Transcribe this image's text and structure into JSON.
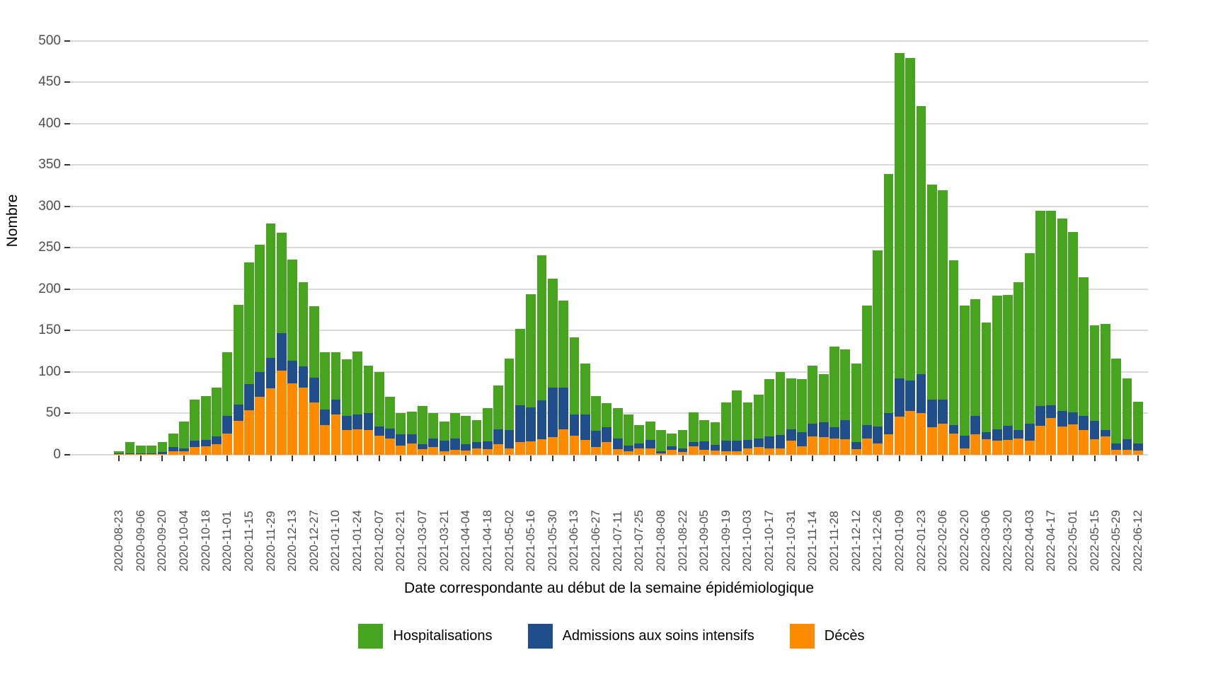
{
  "axes": {
    "y_title": "Nombre",
    "x_title": "Date correspondante au début de la semaine épidémiologique"
  },
  "colors": {
    "hospitalisations": "#47a41f",
    "soins_intensifs": "#1f4e8a",
    "deces": "#ff8c00",
    "gridline": "#d9d9d9",
    "tick": "#333333",
    "tick_label": "#4d4d4d"
  },
  "legend": {
    "items": [
      {
        "label": "Hospitalisations",
        "color": "#47a41f"
      },
      {
        "label": "Admissions aux soins intensifs",
        "color": "#1f4e8a"
      },
      {
        "label": "Décès",
        "color": "#ff8c00"
      }
    ]
  },
  "chart_data": {
    "type": "bar",
    "stacked": true,
    "title": "",
    "xlabel": "Date correspondante au début de la semaine épidémiologique",
    "ylabel": "Nombre",
    "ylim": [
      0,
      500
    ],
    "yticks": [
      0,
      50,
      100,
      150,
      200,
      250,
      300,
      350,
      400,
      450,
      500
    ],
    "grid": "horizontal",
    "legend_position": "bottom",
    "x_tick_every": 2,
    "stack_order_bottom_to_top": [
      "Décès",
      "Admissions aux soins intensifs",
      "Hospitalisations"
    ],
    "categories": [
      "2020-08-23",
      "2020-08-30",
      "2020-09-06",
      "2020-09-13",
      "2020-09-20",
      "2020-09-27",
      "2020-10-04",
      "2020-10-11",
      "2020-10-18",
      "2020-10-25",
      "2020-11-01",
      "2020-11-08",
      "2020-11-15",
      "2020-11-22",
      "2020-11-29",
      "2020-12-06",
      "2020-12-13",
      "2020-12-20",
      "2020-12-27",
      "2021-01-03",
      "2021-01-10",
      "2021-01-17",
      "2021-01-24",
      "2021-01-31",
      "2021-02-07",
      "2021-02-14",
      "2021-02-21",
      "2021-02-28",
      "2021-03-07",
      "2021-03-14",
      "2021-03-21",
      "2021-03-28",
      "2021-04-04",
      "2021-04-11",
      "2021-04-18",
      "2021-04-25",
      "2021-05-02",
      "2021-05-09",
      "2021-05-16",
      "2021-05-23",
      "2021-05-30",
      "2021-06-06",
      "2021-06-13",
      "2021-06-20",
      "2021-06-27",
      "2021-07-04",
      "2021-07-11",
      "2021-07-18",
      "2021-07-25",
      "2021-08-01",
      "2021-08-08",
      "2021-08-15",
      "2021-08-22",
      "2021-08-29",
      "2021-09-05",
      "2021-09-12",
      "2021-09-19",
      "2021-09-26",
      "2021-10-03",
      "2021-10-10",
      "2021-10-17",
      "2021-10-24",
      "2021-10-31",
      "2021-11-07",
      "2021-11-14",
      "2021-11-21",
      "2021-11-28",
      "2021-12-05",
      "2021-12-12",
      "2021-12-19",
      "2021-12-26",
      "2022-01-02",
      "2022-01-09",
      "2022-01-16",
      "2022-01-23",
      "2022-01-30",
      "2022-02-06",
      "2022-02-13",
      "2022-02-20",
      "2022-02-27",
      "2022-03-06",
      "2022-03-13",
      "2022-03-20",
      "2022-03-27",
      "2022-04-03",
      "2022-04-10",
      "2022-04-17",
      "2022-04-24",
      "2022-05-01",
      "2022-05-08",
      "2022-05-15",
      "2022-05-22",
      "2022-05-29",
      "2022-06-05",
      "2022-06-12"
    ],
    "series": [
      {
        "name": "Hospitalisations",
        "color": "#47a41f",
        "values": [
          2,
          13,
          9,
          9,
          12,
          17,
          32,
          50,
          53,
          59,
          77,
          120,
          147,
          154,
          162,
          121,
          122,
          101,
          86,
          69,
          57,
          68,
          76,
          58,
          66,
          38,
          25,
          27,
          46,
          30,
          23,
          30,
          34,
          27,
          40,
          53,
          86,
          92,
          137,
          175,
          132,
          105,
          93,
          61,
          42,
          29,
          36,
          38,
          22,
          22,
          26,
          16,
          22,
          36,
          26,
          27,
          46,
          61,
          45,
          53,
          69,
          76,
          61,
          64,
          70,
          58,
          98,
          85,
          95,
          144,
          213,
          289,
          393,
          389,
          324,
          259,
          252,
          199,
          157,
          141,
          133,
          161,
          158,
          178,
          205,
          236,
          235,
          232,
          218,
          167,
          115,
          128,
          102,
          73,
          50
        ]
      },
      {
        "name": "Admissions aux soins intensifs",
        "color": "#1f4e8a",
        "values": [
          1,
          1,
          1,
          1,
          2,
          5,
          4,
          8,
          8,
          9,
          21,
          20,
          31,
          30,
          37,
          45,
          28,
          26,
          30,
          19,
          18,
          17,
          18,
          20,
          11,
          12,
          14,
          11,
          6,
          11,
          13,
          14,
          8,
          7,
          9,
          18,
          22,
          45,
          41,
          47,
          60,
          50,
          26,
          31,
          20,
          18,
          13,
          7,
          6,
          10,
          2,
          4,
          5,
          5,
          10,
          7,
          13,
          13,
          10,
          11,
          14,
          16,
          14,
          17,
          16,
          18,
          13,
          23,
          8,
          16,
          20,
          25,
          46,
          37,
          47,
          34,
          29,
          10,
          15,
          22,
          8,
          14,
          17,
          10,
          21,
          24,
          16,
          19,
          14,
          17,
          22,
          8,
          8,
          13,
          9
        ]
      },
      {
        "name": "Décès",
        "color": "#ff8c00",
        "values": [
          1,
          1,
          1,
          1,
          1,
          4,
          4,
          9,
          10,
          13,
          26,
          41,
          54,
          70,
          80,
          102,
          86,
          81,
          63,
          36,
          49,
          30,
          31,
          30,
          23,
          20,
          11,
          14,
          7,
          9,
          4,
          6,
          5,
          8,
          7,
          13,
          8,
          15,
          16,
          19,
          21,
          31,
          23,
          18,
          9,
          15,
          7,
          4,
          8,
          8,
          2,
          6,
          3,
          10,
          6,
          5,
          4,
          4,
          8,
          9,
          8,
          8,
          17,
          10,
          22,
          21,
          20,
          19,
          7,
          20,
          14,
          25,
          46,
          53,
          50,
          33,
          38,
          26,
          8,
          25,
          19,
          17,
          18,
          20,
          17,
          35,
          44,
          34,
          37,
          30,
          19,
          22,
          6,
          6,
          5
        ]
      }
    ]
  }
}
